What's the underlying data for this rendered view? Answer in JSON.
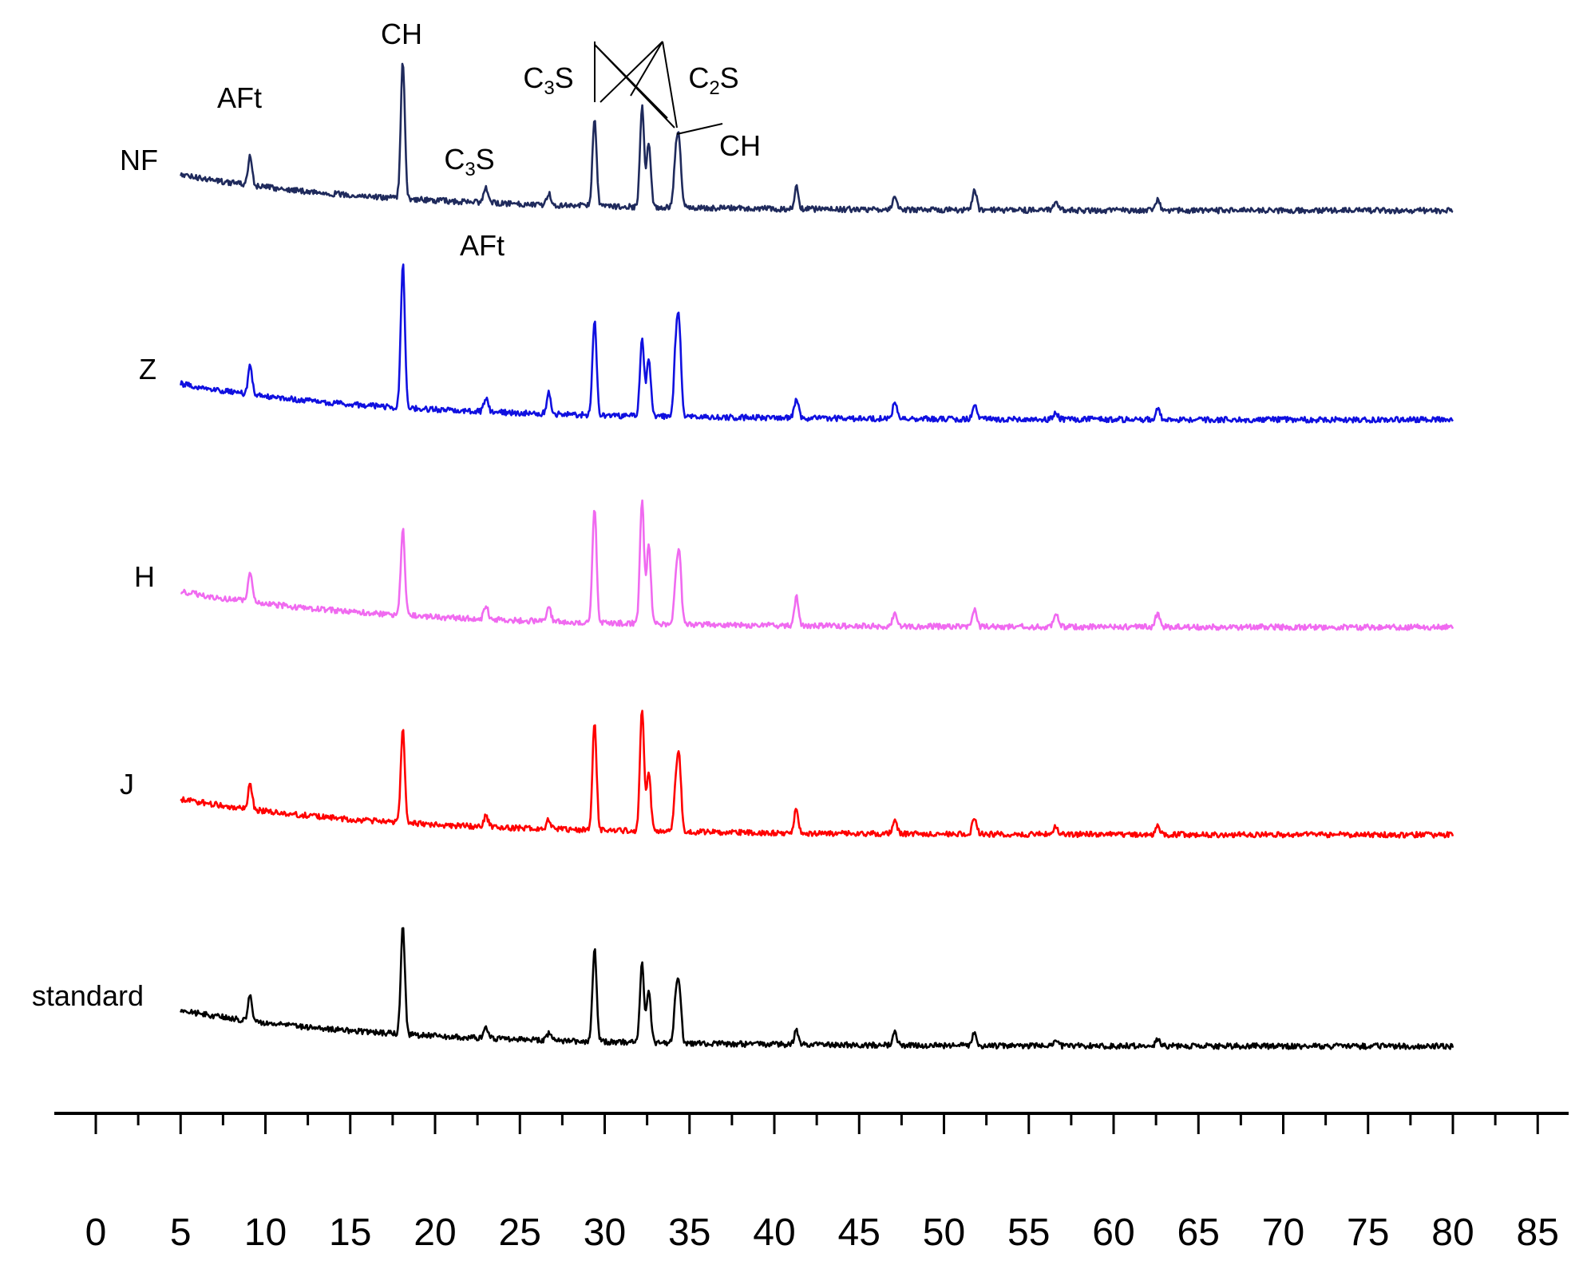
{
  "chart_data": {
    "type": "line",
    "title": "",
    "xlabel": "",
    "ylabel": "",
    "xlim": [
      0,
      88
    ],
    "x_range_data": [
      5,
      80
    ],
    "xticks": [
      0,
      5,
      10,
      15,
      20,
      25,
      30,
      35,
      40,
      45,
      50,
      55,
      60,
      65,
      70,
      75,
      80,
      85
    ],
    "minor_tick_step": 2.5,
    "grid": false,
    "legend": "none (series labeled at left of each trace)",
    "peak_positions_2theta": [
      9.1,
      18.1,
      23.0,
      26.7,
      29.4,
      32.2,
      32.6,
      34.2,
      34.4,
      41.3,
      47.1,
      51.8,
      56.6,
      62.6
    ],
    "series": [
      {
        "name": "NF",
        "color": "#1f2a5c",
        "start_level": 0.15,
        "end_level": 0.05,
        "peak_heights": [
          0.2,
          0.95,
          0.1,
          0.08,
          0.6,
          0.7,
          0.45,
          0.35,
          0.4,
          0.15,
          0.1,
          0.15,
          0.07,
          0.07
        ]
      },
      {
        "name": "Z",
        "color": "#1010e0",
        "start_level": 0.2,
        "end_level": 0.05,
        "peak_heights": [
          0.2,
          1.0,
          0.1,
          0.15,
          0.65,
          0.55,
          0.4,
          0.45,
          0.55,
          0.13,
          0.12,
          0.1,
          0.05,
          0.08
        ]
      },
      {
        "name": "H",
        "color": "#f06af0",
        "start_level": 0.2,
        "end_level": 0.05,
        "peak_heights": [
          0.2,
          0.6,
          0.1,
          0.1,
          0.8,
          0.85,
          0.55,
          0.25,
          0.45,
          0.2,
          0.1,
          0.12,
          0.1,
          0.1
        ]
      },
      {
        "name": "J",
        "color": "#ff0000",
        "start_level": 0.18,
        "end_level": 0.05,
        "peak_heights": [
          0.18,
          0.65,
          0.08,
          0.07,
          0.75,
          0.85,
          0.4,
          0.3,
          0.45,
          0.17,
          0.1,
          0.12,
          0.06,
          0.06
        ]
      },
      {
        "name": "standard",
        "color": "#000000",
        "start_level": 0.15,
        "end_level": 0.05,
        "peak_heights": [
          0.18,
          0.75,
          0.08,
          0.05,
          0.65,
          0.55,
          0.35,
          0.3,
          0.35,
          0.1,
          0.1,
          0.1,
          0.05,
          0.05
        ]
      }
    ],
    "annotations": [
      {
        "text": "AFt",
        "near_series": "NF",
        "x": 9.1
      },
      {
        "text": "CH",
        "near_series": "NF",
        "x": 18.1
      },
      {
        "text": "C",
        "sub": "3",
        "suffix": "S",
        "near_series": "NF",
        "x": 23.0
      },
      {
        "text": "AFt",
        "near_series": "NF",
        "x": 24.0
      },
      {
        "text": "C",
        "sub": "3",
        "suffix": "S",
        "near_series": "NF",
        "x": 29.4
      },
      {
        "text": "C",
        "sub": "2",
        "suffix": "S",
        "near_series": "NF",
        "x": 32.6
      },
      {
        "text": "CH",
        "near_series": "NF",
        "x": 34.4
      }
    ]
  }
}
